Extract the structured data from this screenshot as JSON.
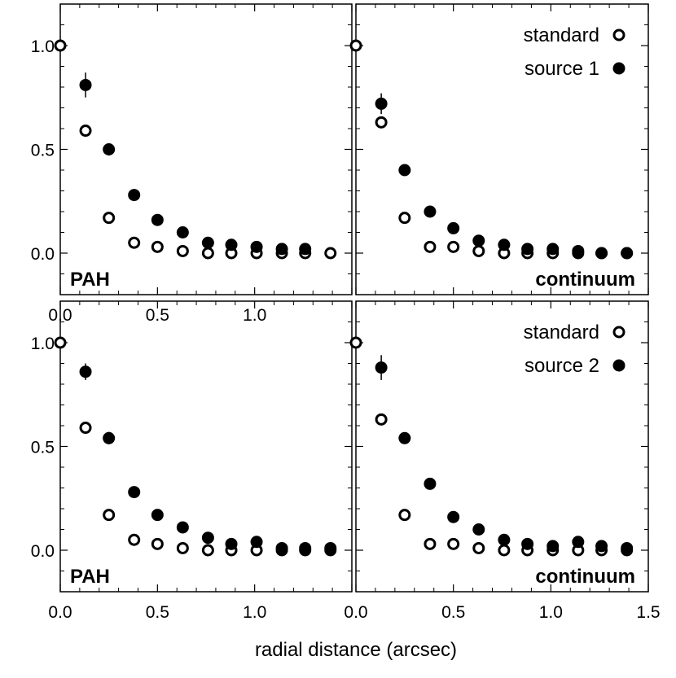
{
  "xlabel": "radial distance (arcsec)",
  "chart_data": [
    {
      "type": "scatter",
      "panel_label": "PAH",
      "xlim": [
        0,
        1.5
      ],
      "ylim": [
        -0.2,
        1.2
      ],
      "x_ticks": [
        "0.0",
        "0.5",
        "1.0",
        ""
      ],
      "y_ticks": [
        "0.0",
        "0.5",
        "1.0"
      ],
      "legend": [],
      "series": [
        {
          "marker": "open",
          "x": [
            0,
            0.13,
            0.25,
            0.38,
            0.5,
            0.63,
            0.76,
            0.88,
            1.01,
            1.14,
            1.26,
            1.39
          ],
          "y": [
            1.0,
            0.59,
            0.17,
            0.05,
            0.03,
            0.01,
            0.0,
            0.0,
            0.0,
            0.0,
            0.0,
            0.0
          ]
        },
        {
          "marker": "filled",
          "x": [
            0.13,
            0.25,
            0.38,
            0.5,
            0.63,
            0.76,
            0.88,
            1.01,
            1.14,
            1.26
          ],
          "y": [
            0.81,
            0.5,
            0.28,
            0.16,
            0.1,
            0.05,
            0.04,
            0.03,
            0.02,
            0.02
          ],
          "yerr": [
            0.06,
            0.03,
            0.02,
            0.02,
            0.02,
            0.02,
            0.02,
            0.02,
            0.02,
            0.02
          ]
        }
      ]
    },
    {
      "type": "scatter",
      "panel_label": "continuum",
      "xlim": [
        0,
        1.5
      ],
      "ylim": [
        -0.2,
        1.2
      ],
      "x_ticks": [],
      "y_ticks": [],
      "legend": [
        {
          "label": "standard",
          "marker": "open"
        },
        {
          "label": "source 1",
          "marker": "filled"
        }
      ],
      "series": [
        {
          "marker": "open",
          "x": [
            0,
            0.13,
            0.25,
            0.38,
            0.5,
            0.63,
            0.76,
            0.88,
            1.01,
            1.14,
            1.26,
            1.39
          ],
          "y": [
            1.0,
            0.63,
            0.17,
            0.03,
            0.03,
            0.01,
            0.0,
            0.0,
            0.0,
            0.0,
            0.0,
            0.0
          ]
        },
        {
          "marker": "filled",
          "x": [
            0.13,
            0.25,
            0.38,
            0.5,
            0.63,
            0.76,
            0.88,
            1.01,
            1.14,
            1.26,
            1.39
          ],
          "y": [
            0.72,
            0.4,
            0.2,
            0.12,
            0.06,
            0.04,
            0.02,
            0.02,
            0.01,
            0.0,
            0.0
          ],
          "yerr": [
            0.05,
            0.02,
            0.02,
            0.02,
            0.02,
            0.02,
            0.02,
            0.02,
            0.02,
            0.02,
            0.02
          ]
        }
      ]
    },
    {
      "type": "scatter",
      "panel_label": "PAH",
      "xlim": [
        0,
        1.5
      ],
      "ylim": [
        -0.2,
        1.2
      ],
      "x_ticks": [
        "0.0",
        "0.5",
        "1.0",
        ""
      ],
      "y_ticks": [
        "0.0",
        "0.5",
        "1.0"
      ],
      "legend": [],
      "series": [
        {
          "marker": "open",
          "x": [
            0,
            0.13,
            0.25,
            0.38,
            0.5,
            0.63,
            0.76,
            0.88,
            1.01,
            1.14,
            1.26,
            1.39
          ],
          "y": [
            1.0,
            0.59,
            0.17,
            0.05,
            0.03,
            0.01,
            0.0,
            0.0,
            0.0,
            0.0,
            0.0,
            0.0
          ]
        },
        {
          "marker": "filled",
          "x": [
            0.13,
            0.25,
            0.38,
            0.5,
            0.63,
            0.76,
            0.88,
            1.01,
            1.14,
            1.26,
            1.39
          ],
          "y": [
            0.86,
            0.54,
            0.28,
            0.17,
            0.11,
            0.06,
            0.03,
            0.04,
            0.01,
            0.01,
            0.01
          ],
          "yerr": [
            0.04,
            0.03,
            0.02,
            0.02,
            0.02,
            0.02,
            0.02,
            0.02,
            0.02,
            0.02,
            0.02
          ]
        }
      ]
    },
    {
      "type": "scatter",
      "panel_label": "continuum",
      "xlim": [
        0,
        1.5
      ],
      "ylim": [
        -0.2,
        1.2
      ],
      "x_ticks": [
        "0.0",
        "0.5",
        "1.0",
        "1.5"
      ],
      "y_ticks": [],
      "legend": [
        {
          "label": "standard",
          "marker": "open"
        },
        {
          "label": "source 2",
          "marker": "filled"
        }
      ],
      "series": [
        {
          "marker": "open",
          "x": [
            0,
            0.13,
            0.25,
            0.38,
            0.5,
            0.63,
            0.76,
            0.88,
            1.01,
            1.14,
            1.26,
            1.39
          ],
          "y": [
            1.0,
            0.63,
            0.17,
            0.03,
            0.03,
            0.01,
            0.0,
            0.0,
            0.0,
            0.0,
            0.0,
            0.0
          ]
        },
        {
          "marker": "filled",
          "x": [
            0.13,
            0.25,
            0.38,
            0.5,
            0.63,
            0.76,
            0.88,
            1.01,
            1.14,
            1.26,
            1.39
          ],
          "y": [
            0.88,
            0.54,
            0.32,
            0.16,
            0.1,
            0.05,
            0.03,
            0.02,
            0.04,
            0.02,
            0.01
          ],
          "yerr": [
            0.06,
            0.02,
            0.02,
            0.02,
            0.02,
            0.02,
            0.02,
            0.02,
            0.02,
            0.02,
            0.02
          ]
        }
      ]
    }
  ]
}
